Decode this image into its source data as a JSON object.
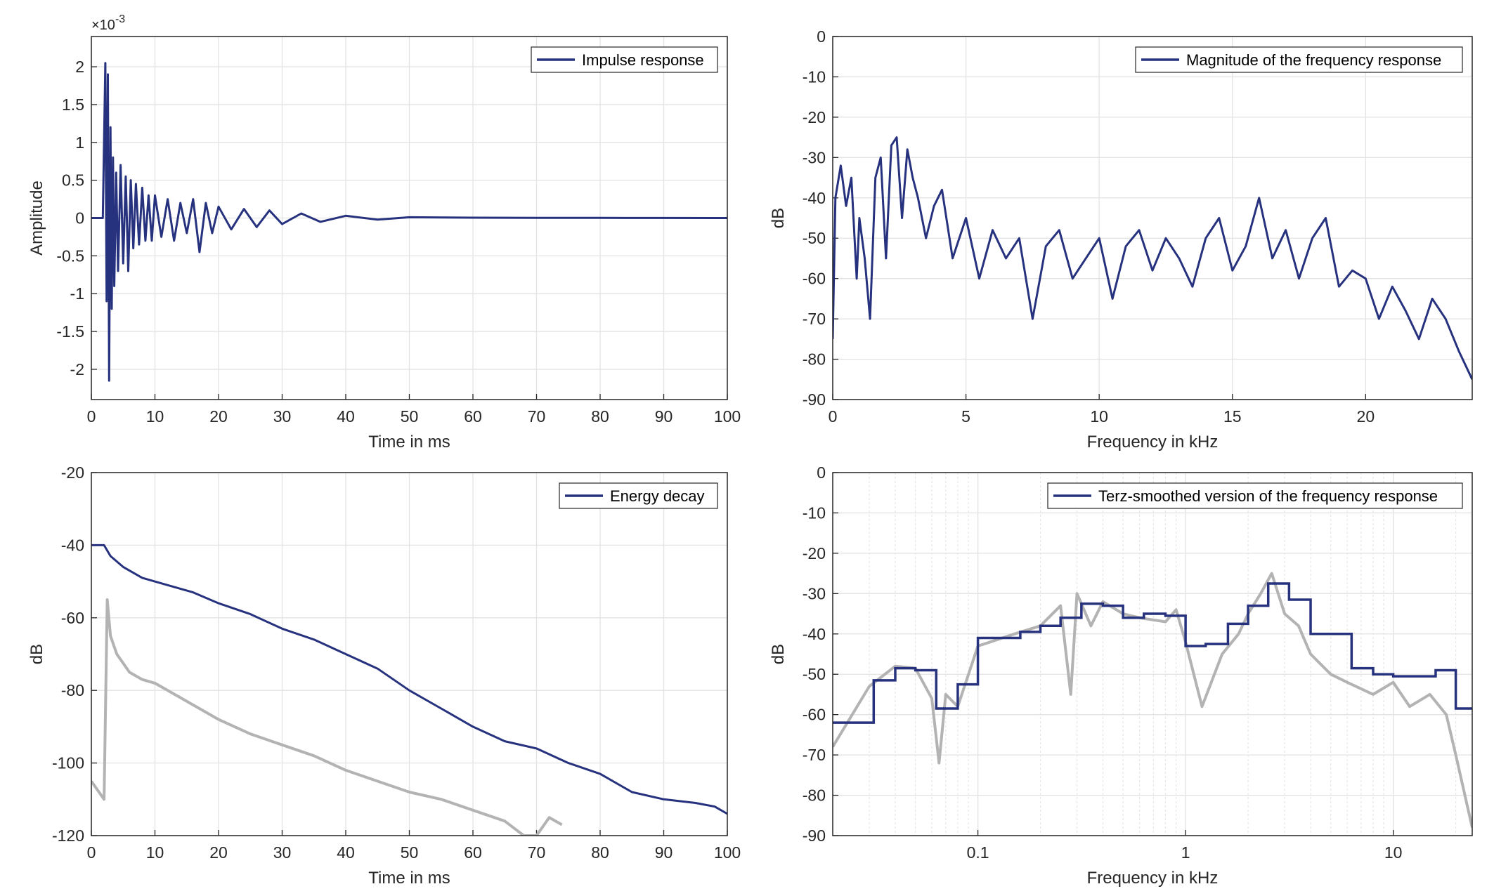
{
  "colors": {
    "blue": "#27327f",
    "gray": "#b3b3b3",
    "grid": "#e3e3e3",
    "axis": "#262626"
  },
  "chart_data": [
    {
      "id": "impulse",
      "type": "line",
      "xlabel": "Time in ms",
      "ylabel": "Amplitude",
      "xlim": [
        0,
        100
      ],
      "ylim": [
        -2.4,
        2.4
      ],
      "xticks": [
        "0",
        "10",
        "20",
        "30",
        "40",
        "50",
        "60",
        "70",
        "80",
        "90",
        "100"
      ],
      "yticks": [
        "-2",
        "-1.5",
        "-1",
        "-0.5",
        "0",
        "0.5",
        "1",
        "1.5",
        "2"
      ],
      "exponent_label": "×10",
      "exponent_power": "-3",
      "legend": "top-right",
      "grid": true,
      "series": [
        {
          "name": "Impulse response",
          "color": "#27327f",
          "x": [
            0,
            1.8,
            2.2,
            2.4,
            2.6,
            2.8,
            3.0,
            3.2,
            3.4,
            3.6,
            3.9,
            4.2,
            4.6,
            5.0,
            5.4,
            5.8,
            6.2,
            6.6,
            7.0,
            7.5,
            8.0,
            8.5,
            9.0,
            9.5,
            10,
            11,
            12,
            13,
            14,
            15,
            16,
            17,
            18,
            19,
            20,
            22,
            24,
            26,
            28,
            30,
            33,
            36,
            40,
            45,
            50,
            60,
            70,
            80,
            90,
            100
          ],
          "y": [
            0,
            0,
            2.05,
            -1.1,
            1.9,
            -2.15,
            1.2,
            -1.2,
            0.8,
            -0.9,
            0.6,
            -0.7,
            0.7,
            -0.6,
            0.55,
            -0.7,
            0.5,
            -0.4,
            0.45,
            -0.35,
            0.4,
            -0.3,
            0.3,
            -0.3,
            0.3,
            -0.25,
            0.25,
            -0.3,
            0.2,
            -0.2,
            0.25,
            -0.45,
            0.2,
            -0.2,
            0.15,
            -0.15,
            0.12,
            -0.12,
            0.1,
            -0.08,
            0.06,
            -0.05,
            0.03,
            -0.02,
            0.01,
            0.005,
            0.003,
            0.002,
            0.001,
            0
          ]
        }
      ]
    },
    {
      "id": "magnitude",
      "type": "line",
      "xlabel": "Frequency in kHz",
      "ylabel": "dB",
      "xlim": [
        0,
        24
      ],
      "ylim": [
        -90,
        0
      ],
      "xticks": [
        "0",
        "5",
        "10",
        "15",
        "20"
      ],
      "yticks": [
        "0",
        "-10",
        "-20",
        "-30",
        "-40",
        "-50",
        "-60",
        "-70",
        "-80",
        "-90"
      ],
      "legend": "top-right",
      "grid": true,
      "series": [
        {
          "name": "Magnitude of the frequency response",
          "color": "#27327f",
          "x": [
            0,
            0.1,
            0.3,
            0.5,
            0.7,
            0.9,
            1.0,
            1.2,
            1.4,
            1.6,
            1.8,
            2.0,
            2.2,
            2.4,
            2.6,
            2.8,
            3.0,
            3.2,
            3.5,
            3.8,
            4.1,
            4.5,
            5.0,
            5.5,
            6.0,
            6.5,
            7.0,
            7.5,
            8.0,
            8.5,
            9.0,
            9.5,
            10,
            10.5,
            11,
            11.5,
            12,
            12.5,
            13,
            13.5,
            14,
            14.5,
            15,
            15.5,
            16,
            16.5,
            17,
            17.5,
            18,
            18.5,
            19,
            19.5,
            20,
            20.5,
            21,
            21.5,
            22,
            22.5,
            23,
            23.5,
            24
          ],
          "y": [
            -75,
            -40,
            -32,
            -42,
            -35,
            -60,
            -45,
            -55,
            -70,
            -35,
            -30,
            -55,
            -27,
            -25,
            -45,
            -28,
            -35,
            -40,
            -50,
            -42,
            -38,
            -55,
            -45,
            -60,
            -48,
            -55,
            -50,
            -70,
            -52,
            -48,
            -60,
            -55,
            -50,
            -65,
            -52,
            -48,
            -58,
            -50,
            -55,
            -62,
            -50,
            -45,
            -58,
            -52,
            -40,
            -55,
            -48,
            -60,
            -50,
            -45,
            -62,
            -58,
            -60,
            -70,
            -62,
            -68,
            -75,
            -65,
            -70,
            -78,
            -85
          ]
        }
      ]
    },
    {
      "id": "decay",
      "type": "line",
      "xlabel": "Time in ms",
      "ylabel": "dB",
      "xlim": [
        0,
        100
      ],
      "ylim": [
        -120,
        -20
      ],
      "xticks": [
        "0",
        "10",
        "20",
        "30",
        "40",
        "50",
        "60",
        "70",
        "80",
        "90",
        "100"
      ],
      "yticks": [
        "-20",
        "-40",
        "-60",
        "-80",
        "-100",
        "-120"
      ],
      "legend": "top-right",
      "grid": true,
      "series": [
        {
          "name": "Energy decay",
          "color": "#27327f",
          "x": [
            0,
            2,
            3,
            5,
            8,
            12,
            16,
            20,
            25,
            30,
            35,
            40,
            45,
            50,
            55,
            60,
            65,
            70,
            75,
            80,
            85,
            90,
            95,
            98,
            100
          ],
          "y": [
            -40,
            -40,
            -43,
            -46,
            -49,
            -51,
            -53,
            -56,
            -59,
            -63,
            -66,
            -70,
            -74,
            -80,
            -85,
            -90,
            -94,
            -96,
            -100,
            -103,
            -108,
            -110,
            -111,
            -112,
            -114
          ]
        },
        {
          "color": "#b3b3b3",
          "x": [
            0,
            2,
            2.5,
            3,
            4,
            6,
            8,
            10,
            15,
            20,
            25,
            30,
            35,
            40,
            45,
            50,
            55,
            60,
            65,
            68,
            70,
            72,
            74
          ],
          "y": [
            -105,
            -110,
            -55,
            -65,
            -70,
            -75,
            -77,
            -78,
            -83,
            -88,
            -92,
            -95,
            -98,
            -102,
            -105,
            -108,
            -110,
            -113,
            -116,
            -120,
            -120,
            -115,
            -117
          ]
        }
      ]
    },
    {
      "id": "terz",
      "type": "line",
      "xlabel": "Frequency in kHz",
      "ylabel": "dB",
      "xscale": "log",
      "xlim": [
        0.02,
        24
      ],
      "ylim": [
        -90,
        0
      ],
      "xticks": [
        "0.1",
        "1",
        "10"
      ],
      "xtick_values": [
        0.1,
        1,
        10
      ],
      "yticks": [
        "0",
        "-10",
        "-20",
        "-30",
        "-40",
        "-50",
        "-60",
        "-70",
        "-80",
        "-90"
      ],
      "legend": "top-right",
      "grid": true,
      "series": [
        {
          "name": "Terz-smoothed version of the frequency response",
          "color": "#27327f",
          "x": [
            0.02,
            0.025,
            0.0315,
            0.04,
            0.05,
            0.063,
            0.08,
            0.1,
            0.125,
            0.16,
            0.2,
            0.25,
            0.315,
            0.4,
            0.5,
            0.63,
            0.8,
            1.0,
            1.25,
            1.6,
            2.0,
            2.5,
            3.15,
            4.0,
            5.0,
            6.3,
            8.0,
            10,
            12.5,
            16,
            20,
            24
          ],
          "y": [
            -62,
            -62,
            -51.5,
            -48.5,
            -49,
            -58.5,
            -52.5,
            -41,
            -41,
            -39.5,
            -38,
            -36,
            -32.5,
            -33,
            -36,
            -35,
            -35.5,
            -43,
            -42.5,
            -37.5,
            -33,
            -27.5,
            -31.5,
            -40,
            -40,
            -48.5,
            -50,
            -50.5,
            -50.5,
            -49,
            -58.5,
            -58.5
          ]
        },
        {
          "color": "#b3b3b3",
          "x": [
            0.02,
            0.03,
            0.04,
            0.05,
            0.06,
            0.065,
            0.07,
            0.08,
            0.1,
            0.15,
            0.2,
            0.25,
            0.28,
            0.3,
            0.35,
            0.4,
            0.5,
            0.6,
            0.8,
            0.9,
            1.0,
            1.2,
            1.5,
            1.8,
            2.0,
            2.3,
            2.6,
            3.0,
            3.5,
            4.0,
            5.0,
            6.0,
            8.0,
            10,
            12,
            15,
            18,
            20,
            24
          ],
          "y": [
            -68,
            -53,
            -48,
            -48.5,
            -56,
            -72,
            -55,
            -58,
            -43,
            -40,
            -38,
            -33,
            -55,
            -30,
            -38,
            -32,
            -35,
            -36,
            -37,
            -34,
            -42,
            -58,
            -45,
            -40,
            -35,
            -30,
            -25,
            -35,
            -38,
            -45,
            -50,
            -52,
            -55,
            -52,
            -58,
            -55,
            -60,
            -70,
            -88
          ]
        }
      ]
    }
  ]
}
